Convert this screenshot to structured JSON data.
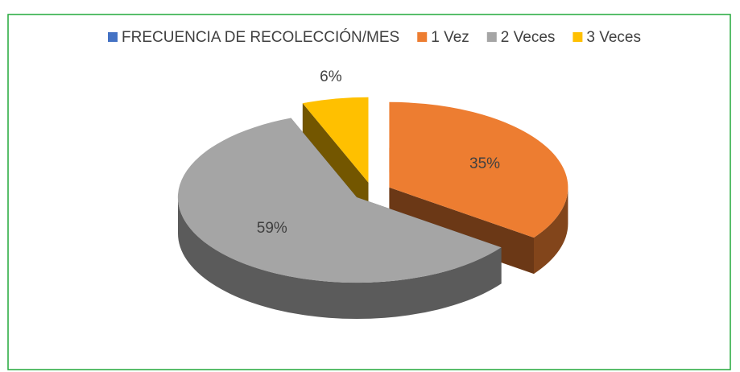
{
  "chart_data": {
    "type": "pie",
    "categories": [
      "FRECUENCIA DE RECOLECCIÓN/MES",
      "1 Vez",
      "2 Veces",
      "3 Veces"
    ],
    "values": [
      null,
      35,
      59,
      6
    ],
    "value_labels": [
      null,
      "35%",
      "59%",
      "6%"
    ],
    "colors": [
      "#4472C4",
      "#ED7D31",
      "#A5A5A5",
      "#FFC000"
    ],
    "legend": "top"
  }
}
